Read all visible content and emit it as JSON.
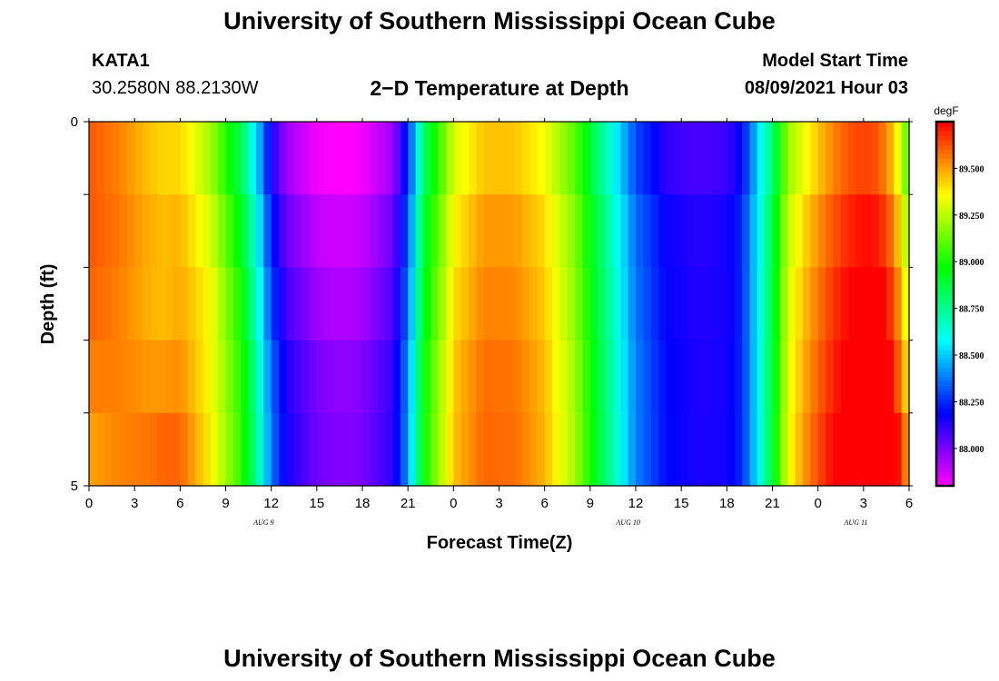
{
  "header": {
    "title_top": "University of Southern Mississippi Ocean Cube",
    "title_bottom": "University of Southern Mississippi Ocean Cube",
    "station": "KATA1",
    "coords": "30.2580N  88.2130W",
    "plot_title": "2−D Temperature at Depth",
    "model_label": "Model Start Time",
    "model_time": "08/09/2021 Hour 03"
  },
  "chart_data": {
    "type": "heatmap",
    "title": "2−D Temperature at Depth",
    "xlabel": "Forecast Time(Z)",
    "ylabel": "Depth (ft)",
    "y_ticks": [
      "0",
      "5"
    ],
    "ylim": [
      0,
      5
    ],
    "x_ticks": [
      "0",
      "3",
      "6",
      "9",
      "12",
      "15",
      "18",
      "21",
      "0",
      "3",
      "6",
      "9",
      "12",
      "15",
      "18",
      "21",
      "0",
      "3",
      "6"
    ],
    "x_ticks_hours": [
      0,
      3,
      6,
      9,
      12,
      15,
      18,
      21,
      24,
      27,
      30,
      33,
      36,
      39,
      42,
      45,
      48,
      51,
      54
    ],
    "xlim_hours": [
      0,
      54
    ],
    "date_labels": [
      {
        "text": "AUG 9",
        "hour": 11.5
      },
      {
        "text": "AUG 10",
        "hour": 35.5
      },
      {
        "text": "AUG 11",
        "hour": 50.5
      }
    ],
    "colorbar": {
      "unit": "degF",
      "min": 87.8,
      "max": 89.75,
      "ticks": [
        "88.000",
        "88.250",
        "88.500",
        "88.750",
        "89.000",
        "89.250",
        "89.500"
      ],
      "tick_values": [
        88.0,
        88.25,
        88.5,
        88.75,
        89.0,
        89.25,
        89.5
      ]
    },
    "depth_layers": 5,
    "base_series": {
      "hours": [
        0,
        2,
        4,
        5,
        6,
        8,
        10,
        11,
        12,
        13,
        15,
        16,
        17,
        18,
        20,
        21,
        22,
        24,
        26,
        28,
        30,
        32,
        33,
        34,
        35,
        36,
        38,
        40,
        42,
        43,
        44,
        45,
        46,
        48,
        49,
        50,
        51,
        52,
        53,
        54
      ],
      "values": [
        89.62,
        89.55,
        89.45,
        89.42,
        89.42,
        89.22,
        88.85,
        88.55,
        88.15,
        87.95,
        87.82,
        87.8,
        87.8,
        87.82,
        87.95,
        88.25,
        88.8,
        89.3,
        89.45,
        89.45,
        89.35,
        89.1,
        88.9,
        88.7,
        88.5,
        88.3,
        88.12,
        88.08,
        88.1,
        88.2,
        88.5,
        88.8,
        89.2,
        89.45,
        89.55,
        89.62,
        89.65,
        89.62,
        89.45,
        89.05
      ]
    },
    "depth_offsets": [
      {
        "hours": [
          0,
          5,
          8,
          11,
          44,
          47,
          50,
          54
        ],
        "values": [
          0,
          0,
          0,
          0,
          0,
          0,
          0,
          0
        ]
      },
      {
        "hours": [
          0,
          5,
          8,
          11,
          44,
          47,
          50,
          54
        ],
        "values": [
          0,
          0.04,
          0.08,
          0.08,
          0.05,
          0.08,
          0.07,
          0.12
        ]
      },
      {
        "hours": [
          0,
          5,
          8,
          11,
          44,
          47,
          50,
          54
        ],
        "values": [
          -0.02,
          0.04,
          0.14,
          0.14,
          0.05,
          0.12,
          0.12,
          0.22
        ]
      },
      {
        "hours": [
          0,
          5,
          8,
          11,
          44,
          47,
          50,
          54
        ],
        "values": [
          -0.06,
          0.1,
          0.14,
          0.2,
          0.05,
          0.15,
          0.15,
          0.3
        ]
      },
      {
        "hours": [
          0,
          5,
          8,
          11,
          44,
          47,
          50,
          54
        ],
        "values": [
          -0.12,
          0.18,
          0.16,
          0.22,
          0.05,
          0.18,
          0.2,
          0.42
        ]
      }
    ]
  }
}
